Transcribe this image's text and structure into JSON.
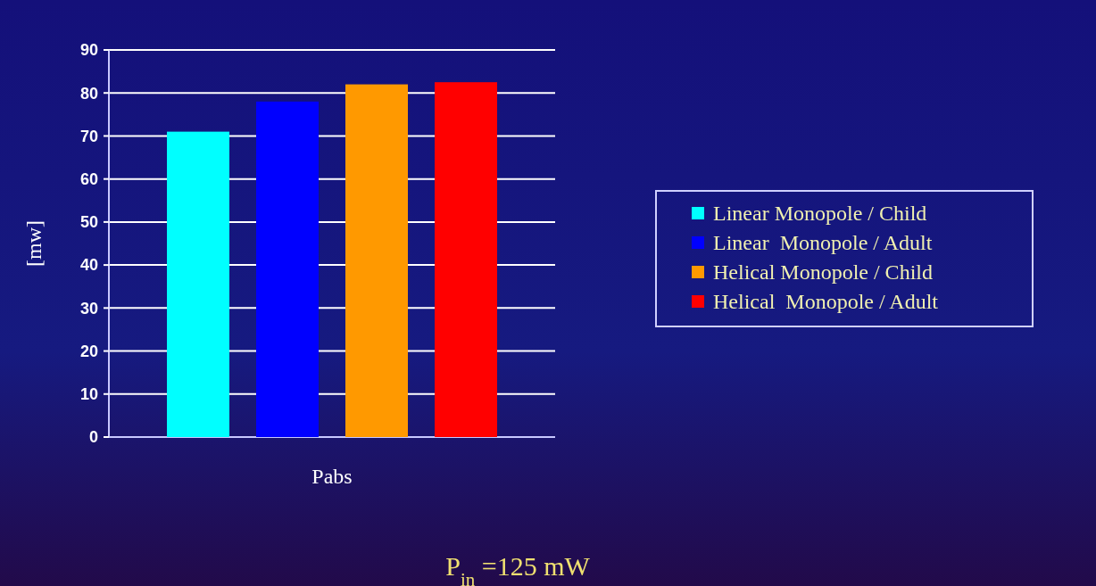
{
  "chart_data": {
    "type": "bar",
    "categories": [
      "Pabs"
    ],
    "ylabel": "[mw]",
    "ylim": [
      0,
      90
    ],
    "yticks": [
      0,
      10,
      20,
      30,
      40,
      50,
      60,
      70,
      80,
      90
    ],
    "grid": "y",
    "legend": "right",
    "series": [
      {
        "name": "Linear Monopole / Child",
        "color": "#00ffff",
        "values": [
          71
        ]
      },
      {
        "name": "Linear  Monopole / Adult",
        "color": "#0000ff",
        "values": [
          78
        ]
      },
      {
        "name": "Helical Monopole / Child",
        "color": "#ff9900",
        "values": [
          82
        ]
      },
      {
        "name": "Helical  Monopole / Adult",
        "color": "#ff0000",
        "values": [
          82.5
        ]
      }
    ],
    "annotations": [
      "P$_{in}$ =125 mW"
    ]
  }
}
